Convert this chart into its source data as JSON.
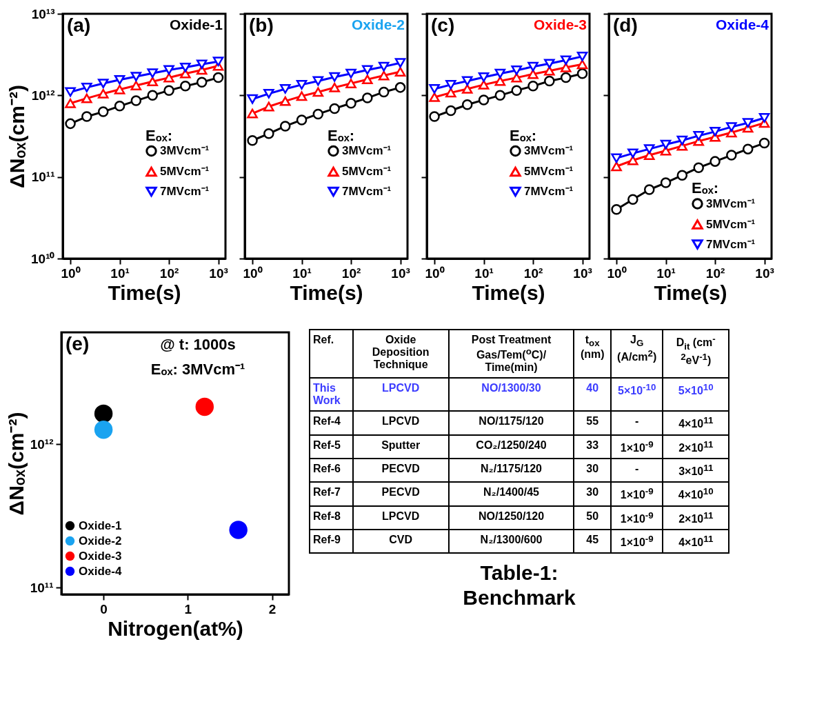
{
  "chart_data": [
    {
      "type": "line",
      "title": "Oxide-1",
      "annotations": [
        "(a)"
      ],
      "xlabel": "Time(s)",
      "ylabel": "ΔNₒₓ(cm⁻²)",
      "legend_title": "Eₒₓ:",
      "legend": "right",
      "log": "xy",
      "x": [
        1,
        2.15,
        4.64,
        10,
        21.5,
        46.4,
        100,
        215,
        464,
        1000
      ],
      "xlim": [
        0.7,
        1400
      ],
      "xticks": [
        {
          "value": 1,
          "label": "10⁰"
        },
        {
          "value": 10,
          "label": "10¹"
        },
        {
          "value": 100,
          "label": "10²"
        },
        {
          "value": 1000,
          "label": "10³"
        }
      ],
      "ylim": [
        10000000000.0,
        10000000000000.0
      ],
      "yticks": [
        {
          "value": 10000000000.0,
          "label": "10¹⁰"
        },
        {
          "value": 100000000000.0,
          "label": "10¹¹"
        },
        {
          "value": 1000000000000.0,
          "label": "10¹²"
        },
        {
          "value": 10000000000000.0,
          "label": "10¹³"
        }
      ],
      "series": [
        {
          "name": "3MVcm⁻¹",
          "color": "#000000",
          "marker": "circle",
          "values": [
            450000000000.0,
            550000000000.0,
            630000000000.0,
            740000000000.0,
            860000000000.0,
            1000000000000.0,
            1150000000000.0,
            1300000000000.0,
            1450000000000.0,
            1650000000000.0
          ]
        },
        {
          "name": "5MVcm⁻¹",
          "color": "#ff0000",
          "marker": "triangle",
          "values": [
            800000000000.0,
            920000000000.0,
            1050000000000.0,
            1180000000000.0,
            1320000000000.0,
            1480000000000.0,
            1650000000000.0,
            1850000000000.0,
            2050000000000.0,
            2300000000000.0
          ]
        },
        {
          "name": "7MVcm⁻¹",
          "color": "#0000ff",
          "marker": "triangle-down",
          "values": [
            1100000000000.0,
            1250000000000.0,
            1400000000000.0,
            1550000000000.0,
            1700000000000.0,
            1870000000000.0,
            2050000000000.0,
            2200000000000.0,
            2400000000000.0,
            2600000000000.0
          ]
        }
      ]
    },
    {
      "type": "line",
      "title": "Oxide-2",
      "annotations": [
        "(b)"
      ],
      "xlabel": "Time(s)",
      "legend_title": "Eₒₓ:",
      "legend": "right",
      "log": "xy",
      "tick_labels": "x",
      "x": [
        1,
        2.15,
        4.64,
        10,
        21.5,
        46.4,
        100,
        215,
        464,
        1000
      ],
      "xlim": [
        0.7,
        1400
      ],
      "xticks": [
        {
          "value": 1,
          "label": "10⁰"
        },
        {
          "value": 10,
          "label": "10¹"
        },
        {
          "value": 100,
          "label": "10²"
        },
        {
          "value": 1000,
          "label": "10³"
        }
      ],
      "ylim": [
        10000000000.0,
        10000000000000.0
      ],
      "yticks": [
        {
          "value": 10000000000.0,
          "label": null
        },
        {
          "value": 100000000000.0,
          "label": null
        },
        {
          "value": 1000000000000.0,
          "label": null
        },
        {
          "value": 10000000000000.0,
          "label": null
        }
      ],
      "series": [
        {
          "name": "3MVcm⁻¹",
          "color": "#000000",
          "marker": "circle",
          "values": [
            280000000000.0,
            340000000000.0,
            420000000000.0,
            500000000000.0,
            590000000000.0,
            690000000000.0,
            800000000000.0,
            930000000000.0,
            1100000000000.0,
            1250000000000.0
          ]
        },
        {
          "name": "5MVcm⁻¹",
          "color": "#ff0000",
          "marker": "triangle",
          "values": [
            600000000000.0,
            730000000000.0,
            850000000000.0,
            980000000000.0,
            1100000000000.0,
            1250000000000.0,
            1400000000000.0,
            1570000000000.0,
            1750000000000.0,
            1950000000000.0
          ]
        },
        {
          "name": "7MVcm⁻¹",
          "color": "#0000ff",
          "marker": "triangle-down",
          "values": [
            900000000000.0,
            1050000000000.0,
            1200000000000.0,
            1350000000000.0,
            1500000000000.0,
            1680000000000.0,
            1850000000000.0,
            2050000000000.0,
            2250000000000.0,
            2500000000000.0
          ]
        }
      ]
    },
    {
      "type": "line",
      "title": "Oxide-3",
      "annotations": [
        "(c)"
      ],
      "xlabel": "Time(s)",
      "legend_title": "Eₒₓ:",
      "legend": "right",
      "log": "xy",
      "tick_labels": "x",
      "x": [
        1,
        2.15,
        4.64,
        10,
        21.5,
        46.4,
        100,
        215,
        464,
        1000
      ],
      "xlim": [
        0.7,
        1400
      ],
      "xticks": [
        {
          "value": 1,
          "label": "10⁰"
        },
        {
          "value": 10,
          "label": "10¹"
        },
        {
          "value": 100,
          "label": "10²"
        },
        {
          "value": 1000,
          "label": "10³"
        }
      ],
      "ylim": [
        10000000000.0,
        10000000000000.0
      ],
      "yticks": [
        {
          "value": 10000000000.0,
          "label": null
        },
        {
          "value": 100000000000.0,
          "label": null
        },
        {
          "value": 1000000000000.0,
          "label": null
        },
        {
          "value": 10000000000000.0,
          "label": null
        }
      ],
      "series": [
        {
          "name": "3MVcm⁻¹",
          "color": "#000000",
          "marker": "circle",
          "values": [
            550000000000.0,
            650000000000.0,
            770000000000.0,
            880000000000.0,
            1000000000000.0,
            1150000000000.0,
            1300000000000.0,
            1500000000000.0,
            1650000000000.0,
            1850000000000.0
          ]
        },
        {
          "name": "5MVcm⁻¹",
          "color": "#ff0000",
          "marker": "triangle",
          "values": [
            950000000000.0,
            1080000000000.0,
            1200000000000.0,
            1350000000000.0,
            1500000000000.0,
            1650000000000.0,
            1820000000000.0,
            2000000000000.0,
            2200000000000.0,
            2400000000000.0
          ]
        },
        {
          "name": "7MVcm⁻¹",
          "color": "#0000ff",
          "marker": "triangle-down",
          "values": [
            1200000000000.0,
            1350000000000.0,
            1500000000000.0,
            1670000000000.0,
            1850000000000.0,
            2030000000000.0,
            2250000000000.0,
            2450000000000.0,
            2700000000000.0,
            3000000000000.0
          ]
        }
      ]
    },
    {
      "type": "line",
      "title": "Oxide-4",
      "annotations": [
        "(d)"
      ],
      "xlabel": "Time(s)",
      "legend_title": "Eₒₓ:",
      "legend": "bottom right",
      "log": "xy",
      "tick_labels": "x",
      "x": [
        1,
        2.15,
        4.64,
        10,
        21.5,
        46.4,
        100,
        215,
        464,
        1000
      ],
      "xlim": [
        0.7,
        1400
      ],
      "xticks": [
        {
          "value": 1,
          "label": "10⁰"
        },
        {
          "value": 10,
          "label": "10¹"
        },
        {
          "value": 100,
          "label": "10²"
        },
        {
          "value": 1000,
          "label": "10³"
        }
      ],
      "ylim": [
        10000000000.0,
        10000000000000.0
      ],
      "yticks": [
        {
          "value": 10000000000.0,
          "label": null
        },
        {
          "value": 100000000000.0,
          "label": null
        },
        {
          "value": 1000000000000.0,
          "label": null
        },
        {
          "value": 10000000000000.0,
          "label": null
        }
      ],
      "series": [
        {
          "name": "3MVcm⁻¹",
          "color": "#000000",
          "marker": "circle",
          "values": [
            40000000000.0,
            53000000000.0,
            70000000000.0,
            85000000000.0,
            105000000000.0,
            130000000000.0,
            155000000000.0,
            185000000000.0,
            220000000000.0,
            260000000000.0
          ]
        },
        {
          "name": "5MVcm⁻¹",
          "color": "#ff0000",
          "marker": "triangle",
          "values": [
            135000000000.0,
            160000000000.0,
            185000000000.0,
            210000000000.0,
            240000000000.0,
            275000000000.0,
            310000000000.0,
            350000000000.0,
            400000000000.0,
            460000000000.0
          ]
        },
        {
          "name": "7MVcm⁻¹",
          "color": "#0000ff",
          "marker": "triangle-down",
          "values": [
            170000000000.0,
            195000000000.0,
            220000000000.0,
            250000000000.0,
            280000000000.0,
            320000000000.0,
            360000000000.0,
            410000000000.0,
            460000000000.0,
            530000000000.0
          ]
        }
      ]
    },
    {
      "type": "scatter",
      "annotations": [
        "(e)",
        "@ t: 1000s",
        "Eₒₓ: 3MVcm⁻¹"
      ],
      "xlabel": "Nitrogen(at%)",
      "ylabel": "ΔNₒₓ(cm⁻²)",
      "legend": "bottom left",
      "log": "y",
      "marker": "circle",
      "xlim": [
        -0.5,
        2.2
      ],
      "xticks": [
        0,
        1,
        2
      ],
      "ylim": [
        90000000000.0,
        6000000000000.0
      ],
      "yticks": [
        {
          "value": 100000000000.0,
          "label": "10¹¹"
        },
        {
          "value": 1000000000000.0,
          "label": "10¹²"
        }
      ],
      "series": [
        {
          "name": "Oxide-1",
          "color": "#000000",
          "x": [
            0
          ],
          "values": [
            1630000000000.0
          ]
        },
        {
          "name": "Oxide-2",
          "color": "#1aa3f0",
          "x": [
            0
          ],
          "values": [
            1260000000000.0
          ]
        },
        {
          "name": "Oxide-3",
          "color": "#ff0000",
          "x": [
            1.2
          ],
          "values": [
            1820000000000.0
          ]
        },
        {
          "name": "Oxide-4",
          "color": "#0000ff",
          "x": [
            1.6
          ],
          "values": [
            253000000000.0
          ]
        }
      ]
    },
    {
      "type": "other",
      "title": "Table-1: Benchmark",
      "categories": [
        "Ref.",
        "Oxide Deposition Technique",
        "Post Treatment Gas/Tem($^{o}$C)/ Time(min)",
        "t$_{ox}$ (nm)",
        "J$_{G}$ (A/cm$^{2}$)",
        "D$_{it}$ (cm$^{-2}$eV$^{-1}$)"
      ],
      "colors": [
        "#3b3bff",
        "#000000",
        "#000000",
        "#000000",
        "#000000",
        "#000000",
        "#000000"
      ],
      "cell_labels": [
        [
          "This Work",
          "LPCVD",
          "NO/1300/30",
          "40",
          "5×10$^{-10}$",
          "5×10$^{10}$"
        ],
        [
          "Ref-4",
          "LPCVD",
          "NO/1175/120",
          "55",
          "-",
          "4×10$^{11}$"
        ],
        [
          "Ref-5",
          "Sputter",
          "CO₂/1250/240",
          "33",
          "1×10$^{-9}$",
          "2×10$^{11}$"
        ],
        [
          "Ref-6",
          "PECVD",
          "N₂/1175/120",
          "30",
          "-",
          "3×10$^{11}$"
        ],
        [
          "Ref-7",
          "PECVD",
          "N₂/1400/45",
          "30",
          "1×10$^{-9}$",
          "4×10$^{10}$"
        ],
        [
          "Ref-8",
          "LPCVD",
          "NO/1250/120",
          "50",
          "1×10$^{-9}$",
          "2×10$^{11}$"
        ],
        [
          "Ref-9",
          "CVD",
          "N₂/1300/600",
          "45",
          "1×10$^{-9}$",
          "4×10$^{11}$"
        ]
      ]
    }
  ]
}
